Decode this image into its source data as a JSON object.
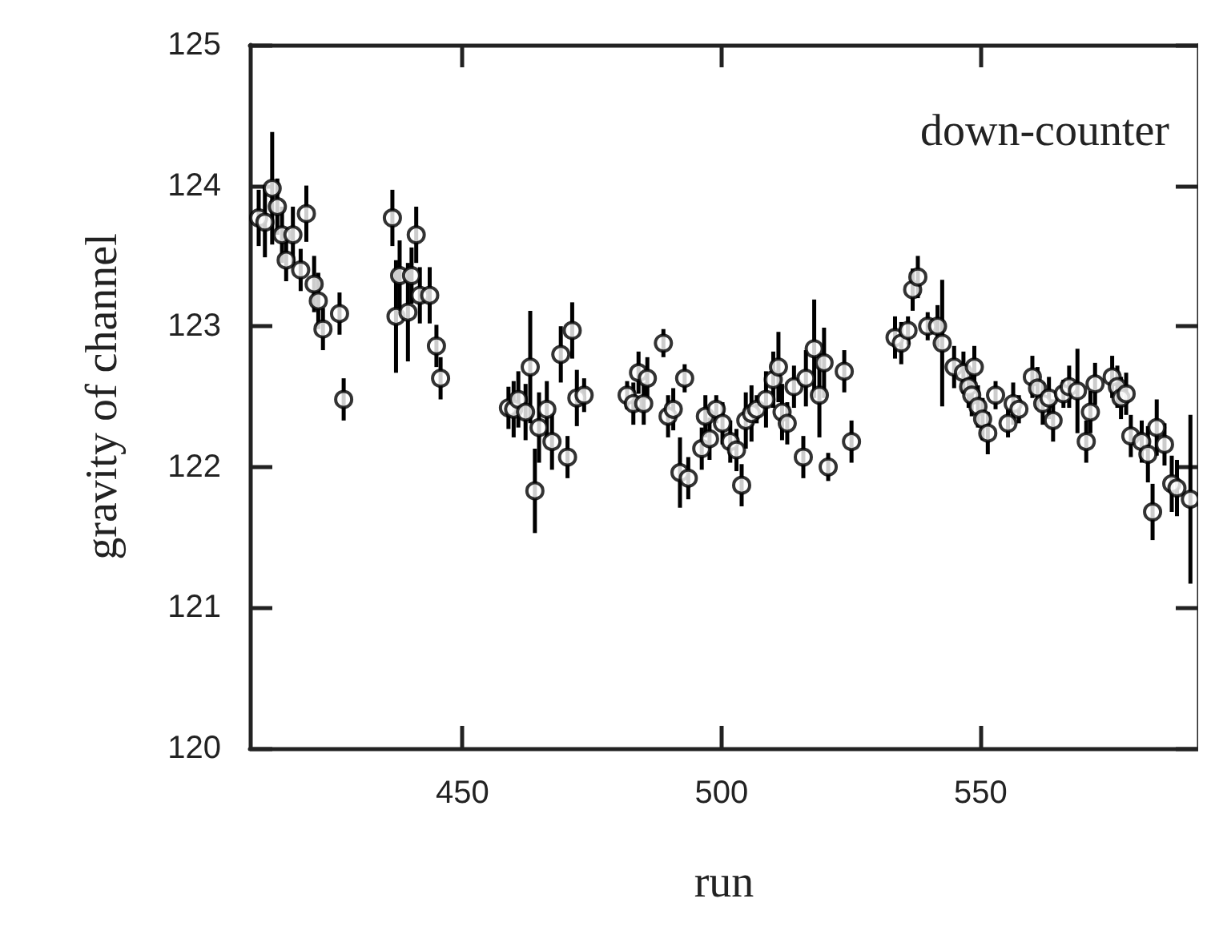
{
  "chart_data": {
    "type": "scatter",
    "xlabel": "run",
    "ylabel": "gravity of channel",
    "annotations": [
      "down-counter"
    ],
    "marker": "circle",
    "grid": false,
    "xlim": [
      409,
      592
    ],
    "xticks": [
      450,
      500,
      550
    ],
    "ylim": [
      120,
      125
    ],
    "yticks": [
      120,
      121,
      122,
      123,
      124,
      125
    ],
    "series": [
      {
        "color": "#000000",
        "x": [
          410.7,
          411.9,
          413.3,
          414.3,
          415.2,
          416.0,
          417.3,
          418.8,
          419.9,
          421.4,
          422.2,
          423.1,
          426.3,
          427.1,
          436.5,
          437.2,
          437.9,
          439.5,
          440.2,
          441.1,
          441.8,
          443.7,
          445.0,
          445.8,
          458.9,
          459.9,
          460.8,
          462.2,
          463.1,
          464.0,
          464.8,
          466.3,
          467.3,
          469.0,
          470.3,
          471.2,
          472.1,
          473.5,
          481.8,
          483.0,
          484.0,
          485.0,
          485.7,
          488.8,
          489.7,
          490.7,
          492.0,
          492.9,
          493.6,
          496.2,
          496.9,
          497.7,
          499.0,
          500.2,
          501.7,
          502.9,
          503.9,
          504.7,
          505.8,
          506.8,
          508.6,
          510.0,
          511.0,
          511.7,
          512.7,
          514.0,
          515.8,
          516.3,
          517.9,
          518.9,
          519.8,
          520.6,
          523.7,
          525.1,
          533.5,
          534.7,
          536.0,
          536.9,
          537.9,
          539.8,
          541.7,
          542.6,
          544.9,
          546.7,
          547.7,
          548.3,
          548.8,
          549.5,
          550.4,
          551.4,
          552.9,
          555.3,
          556.3,
          557.4,
          560.0,
          561.0,
          562.0,
          563.2,
          564.0,
          566.0,
          567.1,
          568.7,
          570.4,
          571.2,
          572.1,
          575.4,
          576.4,
          577.1,
          578.1,
          579.0,
          581.1,
          582.3,
          583.2,
          584.0,
          585.5,
          586.9,
          587.9,
          590.5
        ],
        "values": [
          123.77,
          123.74,
          123.98,
          123.85,
          123.65,
          123.47,
          123.65,
          123.4,
          123.8,
          123.3,
          123.18,
          122.98,
          123.09,
          122.48,
          123.77,
          123.07,
          123.36,
          123.1,
          123.36,
          123.65,
          123.22,
          123.22,
          122.86,
          122.63,
          122.42,
          122.41,
          122.48,
          122.39,
          122.71,
          121.83,
          122.28,
          122.41,
          122.18,
          122.8,
          122.07,
          122.97,
          122.49,
          122.51,
          122.51,
          122.45,
          122.67,
          122.45,
          122.63,
          122.88,
          122.36,
          122.41,
          121.96,
          122.63,
          121.92,
          122.13,
          122.36,
          122.2,
          122.41,
          122.31,
          122.18,
          122.12,
          121.87,
          122.33,
          122.38,
          122.41,
          122.48,
          122.62,
          122.71,
          122.39,
          122.31,
          122.57,
          122.07,
          122.63,
          122.84,
          122.51,
          122.74,
          122.0,
          122.68,
          122.18,
          122.92,
          122.88,
          122.97,
          123.26,
          123.35,
          123.0,
          123.0,
          122.88,
          122.71,
          122.67,
          122.57,
          122.51,
          122.71,
          122.43,
          122.34,
          122.24,
          122.51,
          122.31,
          122.45,
          122.41,
          122.64,
          122.56,
          122.45,
          122.49,
          122.33,
          122.52,
          122.57,
          122.54,
          122.18,
          122.39,
          122.59,
          122.64,
          122.57,
          122.49,
          122.52,
          122.22,
          122.18,
          122.09,
          121.68,
          122.28,
          122.16,
          121.88,
          121.85,
          121.77
        ],
        "errors": [
          0.2,
          0.25,
          0.4,
          0.2,
          0.2,
          0.15,
          0.2,
          0.15,
          0.2,
          0.2,
          0.2,
          0.15,
          0.15,
          0.15,
          0.2,
          0.4,
          0.25,
          0.35,
          0.2,
          0.2,
          0.2,
          0.2,
          0.15,
          0.15,
          0.15,
          0.2,
          0.2,
          0.2,
          0.4,
          0.3,
          0.25,
          0.2,
          0.2,
          0.2,
          0.15,
          0.2,
          0.2,
          0.12,
          0.1,
          0.15,
          0.15,
          0.15,
          0.15,
          0.1,
          0.15,
          0.15,
          0.25,
          0.1,
          0.15,
          0.15,
          0.15,
          0.15,
          0.1,
          0.15,
          0.15,
          0.15,
          0.15,
          0.2,
          0.2,
          0.1,
          0.2,
          0.2,
          0.25,
          0.2,
          0.15,
          0.15,
          0.15,
          0.2,
          0.35,
          0.3,
          0.25,
          0.1,
          0.15,
          0.15,
          0.15,
          0.15,
          0.1,
          0.15,
          0.15,
          0.1,
          0.15,
          0.45,
          0.15,
          0.15,
          0.15,
          0.15,
          0.15,
          0.15,
          0.15,
          0.15,
          0.1,
          0.1,
          0.15,
          0.1,
          0.15,
          0.15,
          0.15,
          0.15,
          0.15,
          0.1,
          0.15,
          0.3,
          0.15,
          0.15,
          0.15,
          0.15,
          0.15,
          0.15,
          0.15,
          0.15,
          0.15,
          0.2,
          0.2,
          0.2,
          0.15,
          0.2,
          0.2,
          0.6
        ]
      }
    ]
  }
}
